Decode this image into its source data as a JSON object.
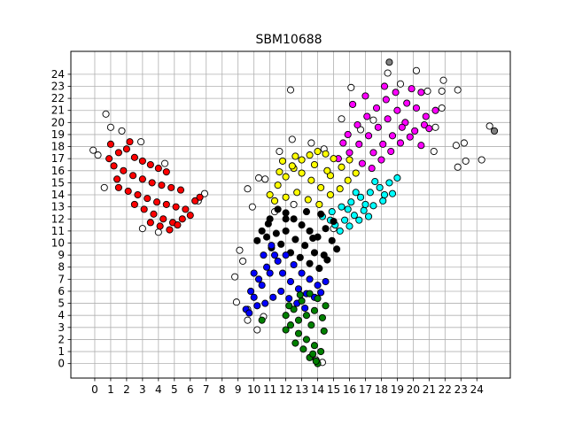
{
  "chart_data": {
    "type": "scatter",
    "title": "SBM10688",
    "xlabel": "",
    "ylabel": "",
    "xlim": [
      -1.5,
      26.1
    ],
    "ylim": [
      -1.2,
      25.9
    ],
    "xticks": [
      0,
      1,
      2,
      3,
      4,
      5,
      6,
      7,
      8,
      9,
      10,
      11,
      12,
      13,
      14,
      15,
      16,
      17,
      18,
      19,
      20,
      21,
      22,
      23,
      24
    ],
    "yticks": [
      0,
      1,
      2,
      3,
      4,
      5,
      6,
      7,
      8,
      9,
      10,
      11,
      12,
      13,
      14,
      15,
      16,
      17,
      18,
      19,
      20,
      21,
      22,
      23,
      24
    ],
    "xtick_labels": [
      "0",
      "1",
      "2",
      "3",
      "4",
      "5",
      "6",
      "7",
      "8",
      "9",
      "10",
      "11",
      "12",
      "13",
      "14",
      "15",
      "16",
      "17",
      "18",
      "19",
      "20",
      "21",
      "22",
      "23",
      "24"
    ],
    "ytick_labels": [
      "0",
      "1",
      "2",
      "3",
      "4",
      "5",
      "6",
      "7",
      "8",
      "9",
      "10",
      "11",
      "12",
      "13",
      "14",
      "15",
      "16",
      "17",
      "18",
      "19",
      "20",
      "21",
      "22",
      "23",
      "24"
    ],
    "grid": true,
    "legend": "none",
    "marker_edge_color": "#000000",
    "series": [
      {
        "color": "#ffffff",
        "points": [
          [
            -0.1,
            17.7
          ],
          [
            0.2,
            17.3
          ],
          [
            0.7,
            20.7
          ],
          [
            1.0,
            19.6
          ],
          [
            0.6,
            14.6
          ],
          [
            1.7,
            19.3
          ],
          [
            2.9,
            18.4
          ],
          [
            3.0,
            11.2
          ],
          [
            4.0,
            10.9
          ],
          [
            4.4,
            16.6
          ],
          [
            6.9,
            14.1
          ],
          [
            6.5,
            13.5
          ],
          [
            9.6,
            14.5
          ],
          [
            9.9,
            13.0
          ],
          [
            10.3,
            15.4
          ],
          [
            10.7,
            15.3
          ],
          [
            12.3,
            22.7
          ],
          [
            12.4,
            18.6
          ],
          [
            11.6,
            17.6
          ],
          [
            13.6,
            18.3
          ],
          [
            14.4,
            17.8
          ],
          [
            15.5,
            20.3
          ],
          [
            16.1,
            22.9
          ],
          [
            16.7,
            19.4
          ],
          [
            17.5,
            20.2
          ],
          [
            18.4,
            24.1
          ],
          [
            19.2,
            23.2
          ],
          [
            20.2,
            24.3
          ],
          [
            20.9,
            22.6
          ],
          [
            21.8,
            22.6
          ],
          [
            21.4,
            19.6
          ],
          [
            21.8,
            21.2
          ],
          [
            21.3,
            17.6
          ],
          [
            21.9,
            23.5
          ],
          [
            22.8,
            22.7
          ],
          [
            22.7,
            18.1
          ],
          [
            22.8,
            16.3
          ],
          [
            23.2,
            18.3
          ],
          [
            23.3,
            16.8
          ],
          [
            24.3,
            16.9
          ],
          [
            24.8,
            19.7
          ],
          [
            8.8,
            7.2
          ],
          [
            9.1,
            9.4
          ],
          [
            9.3,
            8.5
          ],
          [
            9.6,
            4.5
          ],
          [
            9.6,
            3.6
          ],
          [
            10.2,
            2.8
          ],
          [
            10.6,
            3.9
          ],
          [
            13.9,
            0.3
          ],
          [
            14.3,
            0.1
          ],
          [
            11.3,
            12.6
          ],
          [
            12.5,
            13.2
          ],
          [
            8.9,
            5.1
          ],
          [
            15.0,
            11.2
          ]
        ]
      },
      {
        "color": "#ff0000",
        "points": [
          [
            1.0,
            18.2
          ],
          [
            1.5,
            17.5
          ],
          [
            2.0,
            17.8
          ],
          [
            2.5,
            17.1
          ],
          [
            3.0,
            16.8
          ],
          [
            3.5,
            16.5
          ],
          [
            4.0,
            16.2
          ],
          [
            4.5,
            15.9
          ],
          [
            1.2,
            16.4
          ],
          [
            1.8,
            16.0
          ],
          [
            2.4,
            15.6
          ],
          [
            3.0,
            15.3
          ],
          [
            3.6,
            15.0
          ],
          [
            4.2,
            14.8
          ],
          [
            4.8,
            14.6
          ],
          [
            5.4,
            14.4
          ],
          [
            1.5,
            14.6
          ],
          [
            2.1,
            14.3
          ],
          [
            2.7,
            14.0
          ],
          [
            3.3,
            13.7
          ],
          [
            3.9,
            13.4
          ],
          [
            4.5,
            13.2
          ],
          [
            5.1,
            13.0
          ],
          [
            5.7,
            12.8
          ],
          [
            6.3,
            13.5
          ],
          [
            2.5,
            13.2
          ],
          [
            3.1,
            12.8
          ],
          [
            3.7,
            12.4
          ],
          [
            4.3,
            12.0
          ],
          [
            4.9,
            11.7
          ],
          [
            5.5,
            12.0
          ],
          [
            6.0,
            12.3
          ],
          [
            3.5,
            11.7
          ],
          [
            4.1,
            11.4
          ],
          [
            4.7,
            11.1
          ],
          [
            5.2,
            11.5
          ],
          [
            6.6,
            13.8
          ],
          [
            2.2,
            18.4
          ],
          [
            0.9,
            17.0
          ],
          [
            1.4,
            15.3
          ]
        ]
      },
      {
        "color": "#ff00ff",
        "points": [
          [
            15.3,
            17.0
          ],
          [
            16.0,
            17.5
          ],
          [
            16.6,
            18.2
          ],
          [
            17.2,
            18.9
          ],
          [
            17.8,
            19.6
          ],
          [
            18.4,
            20.3
          ],
          [
            19.0,
            21.0
          ],
          [
            19.6,
            21.6
          ],
          [
            20.2,
            21.2
          ],
          [
            20.8,
            20.5
          ],
          [
            21.4,
            21.0
          ],
          [
            15.9,
            19.0
          ],
          [
            16.5,
            19.8
          ],
          [
            17.1,
            20.5
          ],
          [
            17.7,
            21.2
          ],
          [
            18.3,
            21.9
          ],
          [
            18.9,
            22.5
          ],
          [
            19.5,
            20.0
          ],
          [
            20.1,
            19.3
          ],
          [
            20.7,
            19.8
          ],
          [
            17.5,
            17.5
          ],
          [
            18.1,
            18.2
          ],
          [
            18.7,
            18.9
          ],
          [
            19.3,
            19.6
          ],
          [
            16.8,
            16.6
          ],
          [
            17.4,
            16.2
          ],
          [
            18.0,
            16.9
          ],
          [
            18.6,
            17.6
          ],
          [
            19.2,
            18.3
          ],
          [
            19.8,
            18.8
          ],
          [
            20.5,
            18.1
          ],
          [
            21.0,
            19.5
          ],
          [
            16.2,
            21.5
          ],
          [
            17.0,
            22.2
          ],
          [
            18.2,
            23.0
          ],
          [
            19.9,
            22.8
          ],
          [
            20.5,
            22.5
          ],
          [
            15.6,
            18.3
          ]
        ]
      },
      {
        "color": "#ffff00",
        "points": [
          [
            11.0,
            14.0
          ],
          [
            11.5,
            14.8
          ],
          [
            12.0,
            15.5
          ],
          [
            12.5,
            16.2
          ],
          [
            13.0,
            16.9
          ],
          [
            13.5,
            17.3
          ],
          [
            14.0,
            17.6
          ],
          [
            14.5,
            17.4
          ],
          [
            15.0,
            17.0
          ],
          [
            11.8,
            16.8
          ],
          [
            12.4,
            16.4
          ],
          [
            13.0,
            15.8
          ],
          [
            13.6,
            15.2
          ],
          [
            14.2,
            14.6
          ],
          [
            14.8,
            14.0
          ],
          [
            15.4,
            14.5
          ],
          [
            15.9,
            15.2
          ],
          [
            16.4,
            15.8
          ],
          [
            11.3,
            13.5
          ],
          [
            12.0,
            13.8
          ],
          [
            12.7,
            14.2
          ],
          [
            13.4,
            13.6
          ],
          [
            14.1,
            13.2
          ],
          [
            14.8,
            15.6
          ],
          [
            15.5,
            16.3
          ],
          [
            16.0,
            16.9
          ],
          [
            11.6,
            15.9
          ],
          [
            12.6,
            17.2
          ],
          [
            13.8,
            16.5
          ],
          [
            14.6,
            16.0
          ]
        ]
      },
      {
        "color": "#00ffff",
        "points": [
          [
            14.3,
            12.2
          ],
          [
            14.9,
            12.6
          ],
          [
            15.5,
            13.0
          ],
          [
            16.1,
            13.4
          ],
          [
            16.7,
            13.8
          ],
          [
            17.3,
            14.2
          ],
          [
            17.9,
            14.6
          ],
          [
            18.5,
            15.0
          ],
          [
            19.0,
            15.4
          ],
          [
            15.1,
            11.5
          ],
          [
            15.7,
            11.9
          ],
          [
            16.3,
            12.3
          ],
          [
            16.9,
            12.7
          ],
          [
            17.5,
            13.1
          ],
          [
            18.1,
            13.5
          ],
          [
            18.7,
            14.1
          ],
          [
            15.4,
            11.0
          ],
          [
            16.0,
            11.4
          ],
          [
            16.6,
            11.9
          ],
          [
            17.2,
            12.2
          ],
          [
            14.8,
            11.9
          ],
          [
            15.9,
            12.8
          ],
          [
            17.0,
            13.2
          ],
          [
            18.2,
            14.0
          ],
          [
            16.4,
            14.2
          ],
          [
            17.6,
            15.1
          ]
        ]
      },
      {
        "color": "#000000",
        "points": [
          [
            10.5,
            11.0
          ],
          [
            11.0,
            12.0
          ],
          [
            11.5,
            12.8
          ],
          [
            12.0,
            12.5
          ],
          [
            12.5,
            12.0
          ],
          [
            13.0,
            11.5
          ],
          [
            13.5,
            11.0
          ],
          [
            14.0,
            10.5
          ],
          [
            14.5,
            11.2
          ],
          [
            15.0,
            11.8
          ],
          [
            10.2,
            10.2
          ],
          [
            10.8,
            10.5
          ],
          [
            11.4,
            10.8
          ],
          [
            12.0,
            11.0
          ],
          [
            12.6,
            10.3
          ],
          [
            13.2,
            9.8
          ],
          [
            13.8,
            9.2
          ],
          [
            14.4,
            9.0
          ],
          [
            14.9,
            10.2
          ],
          [
            11.1,
            9.6
          ],
          [
            11.7,
            9.9
          ],
          [
            12.3,
            9.2
          ],
          [
            12.9,
            8.8
          ],
          [
            13.5,
            8.3
          ],
          [
            14.1,
            7.9
          ],
          [
            14.6,
            8.6
          ],
          [
            15.2,
            9.5
          ],
          [
            12.0,
            12.0
          ],
          [
            13.3,
            12.6
          ],
          [
            14.2,
            12.4
          ],
          [
            10.9,
            11.6
          ],
          [
            13.7,
            10.4
          ]
        ]
      },
      {
        "color": "#0000ff",
        "points": [
          [
            9.5,
            4.5
          ],
          [
            10.0,
            5.5
          ],
          [
            10.5,
            6.5
          ],
          [
            11.0,
            7.5
          ],
          [
            11.5,
            8.5
          ],
          [
            12.0,
            9.0
          ],
          [
            12.5,
            8.2
          ],
          [
            13.0,
            7.5
          ],
          [
            13.5,
            7.0
          ],
          [
            14.0,
            6.5
          ],
          [
            14.5,
            6.8
          ],
          [
            9.8,
            6.0
          ],
          [
            10.3,
            7.0
          ],
          [
            10.8,
            8.0
          ],
          [
            11.3,
            9.0
          ],
          [
            11.8,
            7.5
          ],
          [
            12.3,
            6.8
          ],
          [
            12.8,
            6.2
          ],
          [
            13.3,
            5.8
          ],
          [
            13.8,
            5.5
          ],
          [
            9.7,
            4.2
          ],
          [
            10.2,
            4.8
          ],
          [
            10.7,
            5.0
          ],
          [
            11.2,
            5.5
          ],
          [
            11.7,
            6.0
          ],
          [
            12.2,
            5.4
          ],
          [
            12.7,
            5.0
          ],
          [
            13.2,
            4.6
          ],
          [
            10.0,
            7.5
          ],
          [
            10.6,
            9.0
          ],
          [
            11.1,
            9.8
          ],
          [
            14.2,
            5.9
          ]
        ]
      },
      {
        "color": "#008000",
        "points": [
          [
            12.0,
            4.0
          ],
          [
            12.5,
            4.5
          ],
          [
            13.0,
            5.2
          ],
          [
            13.5,
            5.8
          ],
          [
            14.0,
            5.4
          ],
          [
            14.5,
            4.8
          ],
          [
            12.3,
            3.2
          ],
          [
            12.8,
            3.6
          ],
          [
            13.3,
            4.0
          ],
          [
            13.8,
            4.4
          ],
          [
            14.3,
            3.8
          ],
          [
            12.8,
            2.5
          ],
          [
            13.3,
            2.0
          ],
          [
            13.8,
            1.5
          ],
          [
            14.2,
            1.0
          ],
          [
            13.5,
            0.5
          ],
          [
            14.0,
            0.0
          ],
          [
            12.0,
            2.8
          ],
          [
            12.6,
            1.7
          ],
          [
            13.1,
            1.2
          ],
          [
            13.7,
            0.8
          ],
          [
            12.2,
            4.8
          ],
          [
            13.6,
            3.2
          ],
          [
            14.4,
            2.7
          ],
          [
            12.9,
            5.7
          ],
          [
            10.5,
            3.6
          ],
          [
            13.9,
            0.2
          ]
        ]
      },
      {
        "color": "#808080",
        "points": [
          [
            18.5,
            25.0
          ],
          [
            25.1,
            19.3
          ]
        ]
      }
    ]
  }
}
